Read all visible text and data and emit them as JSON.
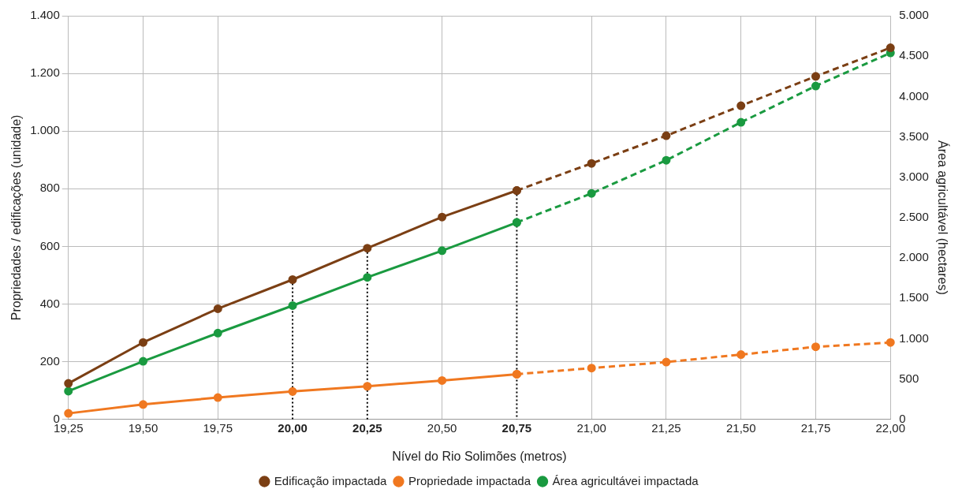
{
  "chart_data": {
    "type": "line",
    "xlabel": "Nível do Rio Solimões (metros)",
    "ylabel": "Propriedades / edificações (unidade)",
    "y2label": "Área agricultável (hectares)",
    "categories": [
      "19,25",
      "19,50",
      "19,75",
      "20,00",
      "20,25",
      "20,50",
      "20,75",
      "21,00",
      "21,25",
      "21,50",
      "21,75",
      "22,00"
    ],
    "series": [
      {
        "name": "Edificação impactada",
        "color": "#7b3f14",
        "line_style": "solid",
        "values": [
          125,
          267,
          384,
          485,
          594,
          702,
          794,
          null,
          null,
          null,
          null,
          null
        ]
      },
      {
        "name": "Propriedade impactada",
        "color": "#f07820",
        "line_style": "solid",
        "values": [
          21,
          52,
          76,
          97,
          115,
          135,
          157,
          null,
          null,
          null,
          null,
          null
        ]
      },
      {
        "name": "Área agricultávei impactada",
        "color": "#1a9a40",
        "line_style": "solid",
        "axis": "y2",
        "values": [
          350,
          720,
          1070,
          1410,
          1760,
          2090,
          2440,
          null,
          null,
          null,
          null,
          null
        ]
      },
      {
        "color": "#7b3f14",
        "line_style": "dashed",
        "values": [
          null,
          null,
          null,
          null,
          null,
          null,
          794,
          888,
          984,
          1088,
          1190,
          1289
        ]
      },
      {
        "color": "#f07820",
        "line_style": "dashed",
        "values": [
          null,
          null,
          null,
          null,
          null,
          null,
          157,
          178,
          199,
          225,
          252,
          267
        ]
      },
      {
        "color": "#1a9a40",
        "line_style": "dashed",
        "axis": "y2",
        "values": [
          null,
          null,
          null,
          null,
          null,
          null,
          2440,
          2800,
          3210,
          3680,
          4130,
          4540
        ]
      }
    ],
    "ylim": [
      0,
      1400
    ],
    "yticks": [
      0,
      200,
      400,
      600,
      {
        "value": 800,
        "label": "800"
      },
      {
        "value": 1000,
        "label": "1.000"
      },
      {
        "value": 1200,
        "label": "1.200"
      },
      {
        "value": 1400,
        "label": "1.400"
      }
    ],
    "y2lim": [
      0,
      5000
    ],
    "y2ticks": [
      0,
      500,
      {
        "value": 1000,
        "label": "1.000"
      },
      {
        "value": 1500,
        "label": "1.500"
      },
      {
        "value": 2000,
        "label": "2.000"
      },
      {
        "value": 2500,
        "label": "2.500"
      },
      {
        "value": 3000,
        "label": "3.000"
      },
      {
        "value": 3500,
        "label": "3.500"
      },
      {
        "value": 4000,
        "label": "4.000"
      },
      {
        "value": 4500,
        "label": "4.500"
      },
      {
        "value": 5000,
        "label": "5.000"
      }
    ],
    "ref_lines": [
      {
        "axis": "x",
        "value": "20,00",
        "color": "#000000",
        "line_style": "dotted"
      },
      {
        "axis": "x",
        "value": "20,25",
        "color": "#000000",
        "line_style": "dotted"
      },
      {
        "axis": "x",
        "value": "20,75",
        "color": "#000000",
        "line_style": "dotted"
      }
    ],
    "grid": true,
    "legend": "bottom",
    "marker": "circle"
  }
}
